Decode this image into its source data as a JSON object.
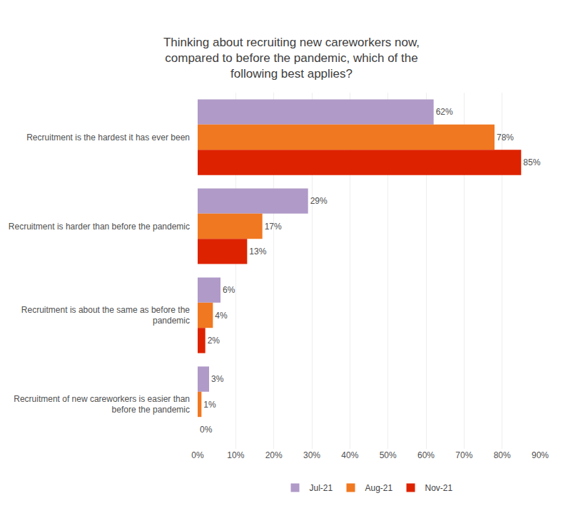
{
  "chart_data": {
    "type": "bar",
    "orientation": "horizontal",
    "title": "Thinking about recruiting new careworkers now,\ncompared to before the pandemic, which of the\nfollowing best applies?",
    "categories": [
      "Recruitment is the hardest it has ever been",
      "Recruitment is harder than before the pandemic",
      "Recruitment is about the same as before the\npandemic",
      "Recruitment of new careworkers is easier than\nbefore the pandemic"
    ],
    "series": [
      {
        "name": "Jul-21",
        "color": "#b09ac8",
        "values": [
          62,
          29,
          6,
          3
        ],
        "value_labels": [
          "62%",
          "29%",
          "6%",
          "3%"
        ]
      },
      {
        "name": "Aug-21",
        "color": "#f07820",
        "values": [
          78,
          17,
          4,
          1
        ],
        "value_labels": [
          "78%",
          "17%",
          "4%",
          "1%"
        ]
      },
      {
        "name": "Nov-21",
        "color": "#dd2200",
        "values": [
          85,
          13,
          2,
          0
        ],
        "value_labels": [
          "85%",
          "13%",
          "2%",
          "0%"
        ]
      }
    ],
    "xlim": [
      0,
      90
    ],
    "xticks": [
      {
        "value": 0,
        "label": "0%"
      },
      {
        "value": 10,
        "label": "10%"
      },
      {
        "value": 20,
        "label": "20%"
      },
      {
        "value": 30,
        "label": "30%"
      },
      {
        "value": 40,
        "label": "40%"
      },
      {
        "value": 50,
        "label": "50%"
      },
      {
        "value": 60,
        "label": "60%"
      },
      {
        "value": 70,
        "label": "70%"
      },
      {
        "value": 80,
        "label": "80%"
      },
      {
        "value": 90,
        "label": "90%"
      }
    ],
    "grid": true,
    "legend": "bottom",
    "data_labels": true
  }
}
